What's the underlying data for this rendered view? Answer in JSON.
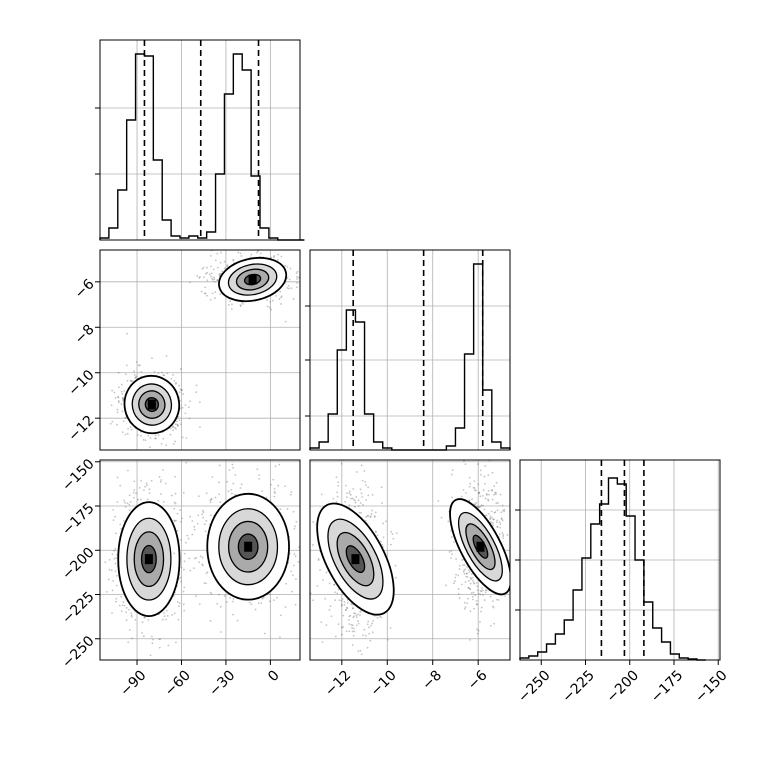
{
  "chart_data": {
    "type": "corner",
    "grid": true,
    "parameters": [
      {
        "ticks": [
          -90,
          -60,
          -30,
          0
        ],
        "tick_labels": [
          "−90",
          "−60",
          "−30",
          "0"
        ],
        "range": [
          -115,
          20
        ]
      },
      {
        "ticks": [
          -12,
          -10,
          -8,
          -6
        ],
        "tick_labels": [
          "−12",
          "−10",
          "−8",
          "−6"
        ],
        "range": [
          -13.4,
          -4.6
        ]
      },
      {
        "ticks": [
          -250,
          -225,
          -200,
          -175,
          -150
        ],
        "tick_labels": [
          "−250",
          "−225",
          "−200",
          "−175",
          "−150"
        ],
        "range": [
          -262,
          -149
        ]
      }
    ],
    "panels": [
      {
        "id": "hist-0",
        "type": "histogram",
        "param": 0,
        "bins": [
          -115,
          -109,
          -103,
          -97,
          -91,
          -85,
          -79,
          -73,
          -67,
          -61,
          -55,
          -49,
          -43,
          -37,
          -31,
          -25,
          -19,
          -13,
          -7,
          -1,
          5,
          11,
          17,
          23
        ],
        "values": [
          0.01,
          0.06,
          0.25,
          0.6,
          0.93,
          0.92,
          0.4,
          0.1,
          0.02,
          0.01,
          0.02,
          0.01,
          0.04,
          0.33,
          0.73,
          0.93,
          0.85,
          0.32,
          0.06,
          0.01,
          0,
          0,
          0
        ],
        "ymax": 1.0,
        "yticks": [
          0.33,
          0.66
        ],
        "quantiles": [
          -85,
          -47,
          -8
        ]
      },
      {
        "id": "hist-1",
        "type": "histogram",
        "param": 1,
        "bins": [
          -13.4,
          -13.0,
          -12.6,
          -12.2,
          -11.8,
          -11.4,
          -11.0,
          -10.6,
          -10.2,
          -9.8,
          -9.4,
          -9.0,
          -8.6,
          -8.2,
          -7.8,
          -7.4,
          -7.0,
          -6.6,
          -6.2,
          -5.8,
          -5.4,
          -5.0,
          -4.6
        ],
        "values": [
          0.01,
          0.04,
          0.18,
          0.5,
          0.7,
          0.64,
          0.18,
          0.04,
          0.01,
          0,
          0,
          0,
          0,
          0,
          0,
          0.02,
          0.11,
          0.48,
          0.93,
          0.3,
          0.04,
          0.01
        ],
        "ymax": 1.0,
        "yticks": [
          0.17,
          0.45,
          0.72
        ],
        "quantiles": [
          -11.5,
          -8.4,
          -5.8
        ]
      },
      {
        "id": "hist-2",
        "type": "histogram",
        "param": 2,
        "bins": [
          -262,
          -257,
          -252,
          -247,
          -242,
          -237,
          -232,
          -227,
          -222,
          -217,
          -212,
          -207,
          -202,
          -197,
          -192,
          -187,
          -182,
          -177,
          -172,
          -167,
          -162,
          -157
        ],
        "values": [
          0.01,
          0.02,
          0.04,
          0.08,
          0.13,
          0.2,
          0.35,
          0.51,
          0.68,
          0.78,
          0.91,
          0.88,
          0.72,
          0.5,
          0.29,
          0.16,
          0.09,
          0.03,
          0.01,
          0.005,
          0
        ],
        "ymax": 1.0,
        "yticks": [
          0.25,
          0.5,
          0.75
        ],
        "quantiles": [
          -216,
          -203,
          -192
        ]
      },
      {
        "id": "scatter-1-0",
        "type": "2d-density",
        "x": 0,
        "y": 1,
        "clusters": [
          {
            "mean": [
              -80,
              -11.4
            ],
            "sd": [
              8,
              0.55
            ],
            "n": 600
          },
          {
            "mean": [
              -12,
              -5.9
            ],
            "sd": [
              10,
              0.4
            ],
            "n": 600
          }
        ]
      },
      {
        "id": "scatter-2-0",
        "type": "2d-density",
        "x": 0,
        "y": 2,
        "clusters": [
          {
            "mean": [
              -82,
              -205
            ],
            "sd": [
              9,
              14
            ],
            "n": 650
          },
          {
            "mean": [
              -15,
              -198
            ],
            "sd": [
              12,
              13
            ],
            "n": 650
          }
        ]
      },
      {
        "id": "scatter-2-1",
        "type": "2d-density",
        "x": 1,
        "y": 2,
        "clusters": [
          {
            "mean": [
              -11.4,
              -205
            ],
            "sd": [
              0.55,
              15
            ],
            "n": 600
          },
          {
            "mean": [
              -5.9,
              -198
            ],
            "sd": [
              0.38,
              13
            ],
            "n": 600
          }
        ]
      }
    ]
  }
}
